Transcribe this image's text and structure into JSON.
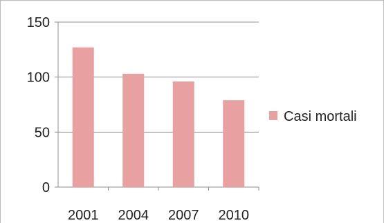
{
  "chart_data": {
    "type": "bar",
    "categories": [
      "2001",
      "2004",
      "2007",
      "2010"
    ],
    "series": [
      {
        "name": "Casi mortali",
        "values": [
          127,
          103,
          96,
          79
        ],
        "color": "#e8a0a0"
      }
    ],
    "y_ticks": [
      "0",
      "50",
      "100",
      "150"
    ],
    "ylim": [
      0,
      150
    ],
    "grid": true,
    "legend_position": "right",
    "title": "",
    "xlabel": "",
    "ylabel": ""
  }
}
